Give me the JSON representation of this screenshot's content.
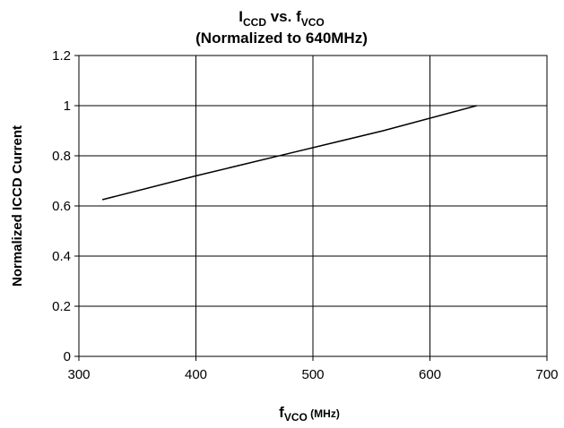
{
  "chart_data": {
    "type": "line",
    "title": {
      "main": "I",
      "main_sub": "CCD",
      "mid": " vs. f",
      "mid_sub": "VCO"
    },
    "subtitle": "(Normalized to 640MHz)",
    "xlabel": {
      "main": "f",
      "sub": "VCO",
      "unit": " (MHz)"
    },
    "ylabel": "Normalized ICCD Current",
    "xlim": [
      300,
      700
    ],
    "ylim": [
      0,
      1.2
    ],
    "x_ticks": [
      "300",
      "400",
      "500",
      "600",
      "700"
    ],
    "y_ticks": [
      "0",
      "0.2",
      "0.4",
      "0.6",
      "0.8",
      "1",
      "1.2"
    ],
    "grid": true,
    "series": [
      {
        "x": [
          320,
          400,
          480,
          560,
          640
        ],
        "y": [
          0.625,
          0.72,
          0.81,
          0.9,
          1.0
        ]
      }
    ],
    "colors": {
      "line": "#000000",
      "grid": "#000000"
    }
  }
}
